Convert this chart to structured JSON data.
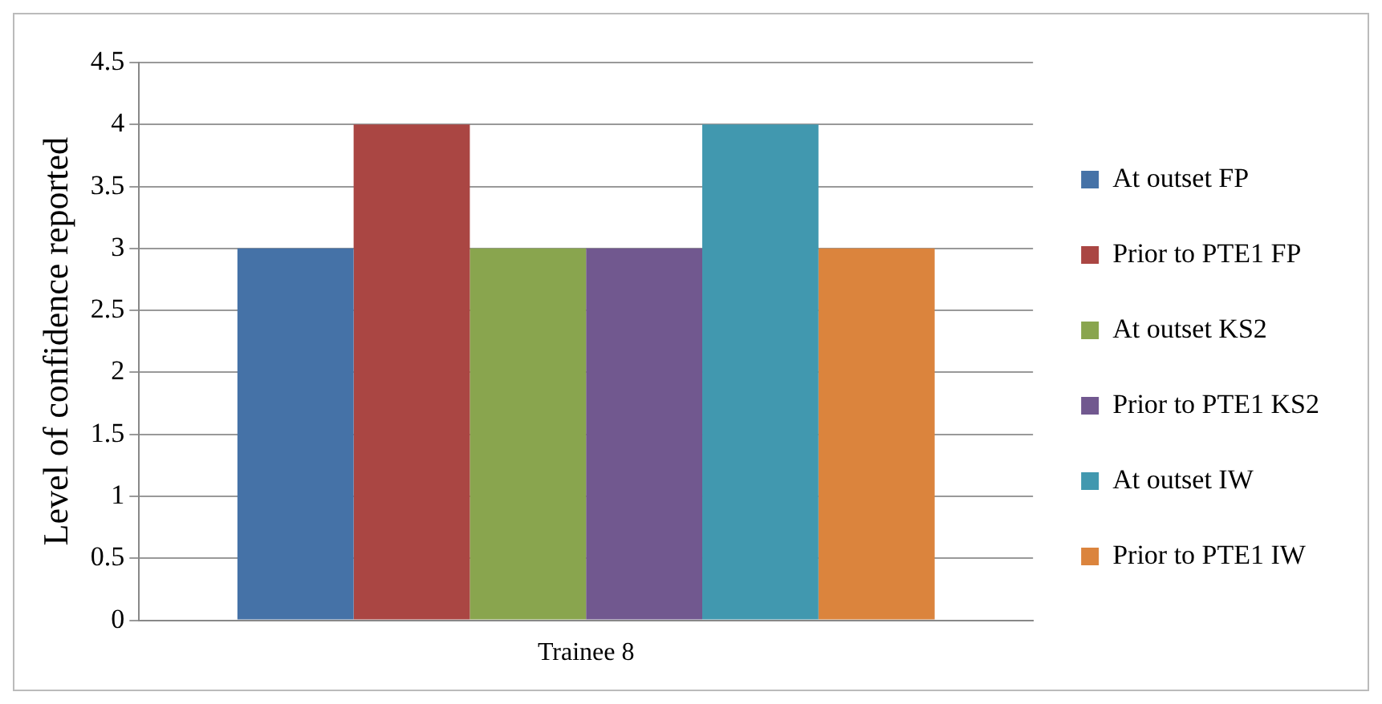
{
  "chart_data": {
    "type": "bar",
    "ylabel": "Level of confidence reported",
    "categories": [
      "Trainee 8"
    ],
    "series": [
      {
        "name": "At outset FP",
        "color": "#4572a7",
        "values": [
          3
        ]
      },
      {
        "name": "Prior to PTE1 FP",
        "color": "#aa4643",
        "values": [
          4
        ]
      },
      {
        "name": "At outset KS2",
        "color": "#89a54e",
        "values": [
          3
        ]
      },
      {
        "name": "Prior to PTE1 KS2",
        "color": "#71588f",
        "values": [
          3
        ]
      },
      {
        "name": "At outset IW",
        "color": "#4198af",
        "values": [
          4
        ]
      },
      {
        "name": "Prior to PTE1 IW",
        "color": "#db843d",
        "values": [
          3
        ]
      }
    ],
    "ylim": [
      0,
      4.5
    ],
    "yticks": [
      0,
      0.5,
      1,
      1.5,
      2,
      2.5,
      3,
      3.5,
      4,
      4.5
    ],
    "grid": "y",
    "legend": "right"
  }
}
